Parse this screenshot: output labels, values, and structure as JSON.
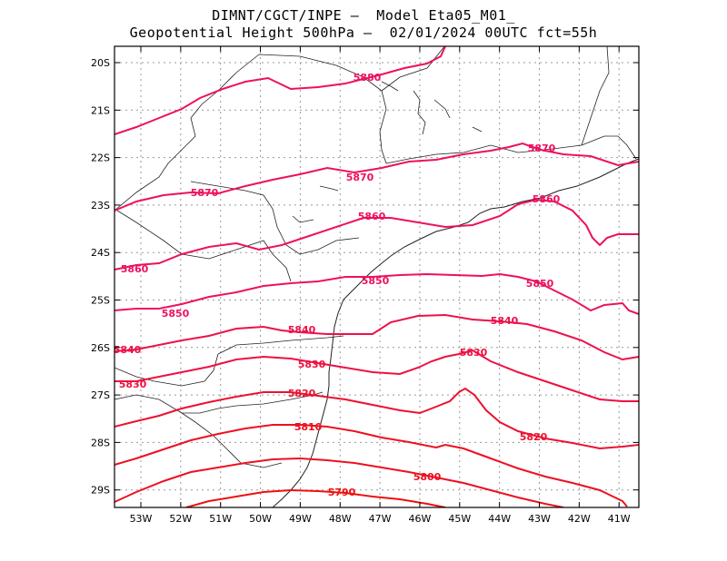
{
  "header": {
    "line1": "DIMNT/CGCT/INPE –  Model Eta05_M01_",
    "line2": "Geopotential Height 500hPa –  02/01/2024 00UTC fct=55h"
  },
  "map": {
    "x_ticks": [
      "53W",
      "52W",
      "51W",
      "50W",
      "49W",
      "48W",
      "47W",
      "46W",
      "45W",
      "44W",
      "43W",
      "42W",
      "41W"
    ],
    "y_ticks": [
      "20S",
      "21S",
      "22S",
      "23S",
      "24S",
      "25S",
      "26S",
      "27S",
      "28S",
      "29S"
    ]
  },
  "contours": [
    {
      "value": "5880",
      "color": "#ee1060"
    },
    {
      "value": "5870",
      "color": "#ee1060"
    },
    {
      "value": "5860",
      "color": "#ee1060"
    },
    {
      "value": "5850",
      "color": "#ee1060"
    },
    {
      "value": "5840",
      "color": "#ee1048"
    },
    {
      "value": "5830",
      "color": "#ee1040"
    },
    {
      "value": "5820",
      "color": "#ee1030"
    },
    {
      "value": "5810",
      "color": "#ee1020"
    },
    {
      "value": "5800",
      "color": "#ee1020"
    },
    {
      "value": "5790",
      "color": "#ee1010"
    }
  ],
  "labels": {
    "l5880": "5880",
    "l5870a": "5870",
    "l5870b": "5870",
    "l5870c": "5870",
    "l5860a": "5860",
    "l5860b": "5860",
    "l5860c": "5860",
    "l5850a": "5850",
    "l5850b": "5850",
    "l5850c": "5850",
    "l5840a": "5840",
    "l5840b": "5840",
    "l5840c": "5840",
    "l5830a": "5830",
    "l5830b": "5830",
    "l5830c": "5830",
    "l5820a": "5820",
    "l5820b": "5820",
    "l5810": "5810",
    "l5800": "5800",
    "l5790": "5790"
  }
}
